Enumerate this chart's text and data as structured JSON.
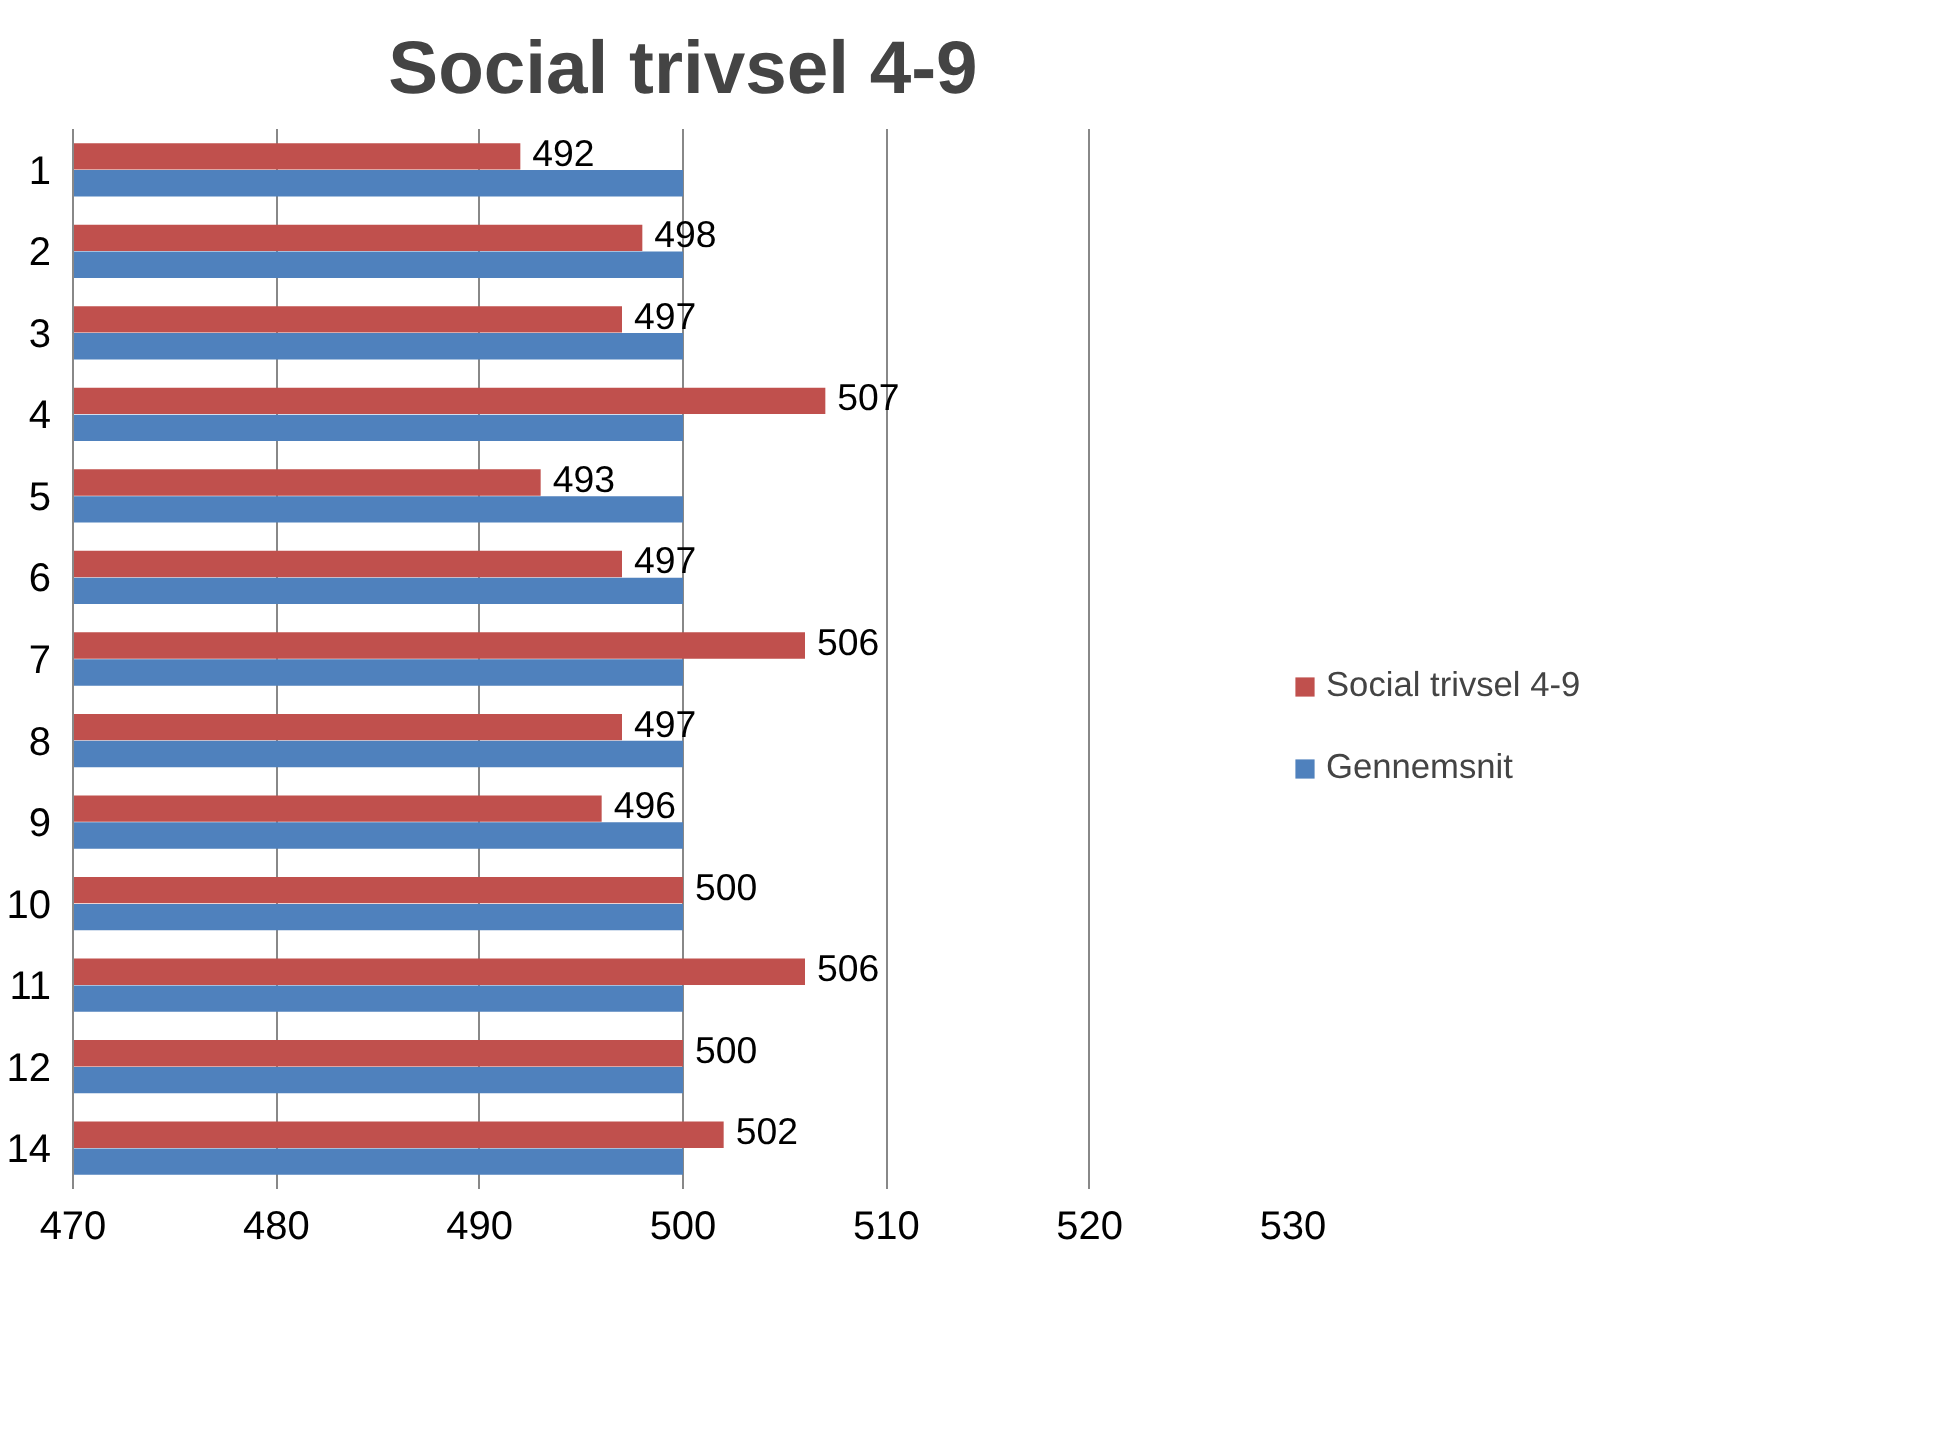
{
  "chart_data": {
    "type": "bar",
    "orientation": "horizontal",
    "title": "Social trivsel 4-9",
    "categories": [
      "1",
      "2",
      "3",
      "4",
      "5",
      "6",
      "7",
      "8",
      "9",
      "10",
      "11",
      "12",
      "14"
    ],
    "series": [
      {
        "name": "Social trivsel 4-9",
        "color": "#c0504d",
        "values": [
          492,
          498,
          497,
          507,
          493,
          497,
          506,
          497,
          496,
          500,
          506,
          500,
          502
        ],
        "value_labels": [
          "492",
          "498",
          "497",
          "507",
          "493",
          "497",
          "506",
          "497",
          "496",
          "500",
          "506",
          "500",
          "502"
        ]
      },
      {
        "name": "Gennemsnit",
        "color": "#4f81bd",
        "values": [
          500,
          500,
          500,
          500,
          500,
          500,
          500,
          500,
          500,
          500,
          500,
          500,
          500
        ]
      }
    ],
    "xlim": [
      470,
      530
    ],
    "xticks": [
      470,
      480,
      490,
      500,
      510,
      520,
      530
    ],
    "grid": "x",
    "legend": "right"
  }
}
